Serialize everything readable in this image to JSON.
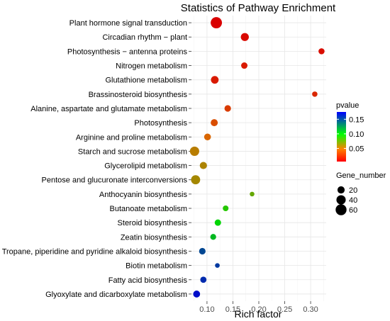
{
  "chart_data": {
    "type": "scatter",
    "title": "Statistics of Pathway Enrichment",
    "xlabel": "Rich factor",
    "ylabel": "",
    "xlim": [
      0.07,
      0.33
    ],
    "x_ticks": [
      "0.10",
      "0.15",
      "0.20",
      "0.25",
      "0.30"
    ],
    "x_tick_values": [
      0.1,
      0.15,
      0.2,
      0.25,
      0.3
    ],
    "grid": true,
    "points": [
      {
        "pathway": "Plant hormone signal transduction",
        "rich_factor": 0.118,
        "pvalue": 0.005,
        "gene_number": 65
      },
      {
        "pathway": "Circadian rhythm − plant",
        "rich_factor": 0.173,
        "pvalue": 0.008,
        "gene_number": 27
      },
      {
        "pathway": "Photosynthesis − antenna proteins",
        "rich_factor": 0.321,
        "pvalue": 0.01,
        "gene_number": 12
      },
      {
        "pathway": "Nitrogen metabolism",
        "rich_factor": 0.172,
        "pvalue": 0.015,
        "gene_number": 14
      },
      {
        "pathway": "Glutathione metabolism",
        "rich_factor": 0.115,
        "pvalue": 0.015,
        "gene_number": 24
      },
      {
        "pathway": "Brassinosteroid biosynthesis",
        "rich_factor": 0.308,
        "pvalue": 0.02,
        "gene_number": 8
      },
      {
        "pathway": "Alanine, aspartate and glutamate metabolism",
        "rich_factor": 0.14,
        "pvalue": 0.028,
        "gene_number": 15
      },
      {
        "pathway": "Photosynthesis",
        "rich_factor": 0.114,
        "pvalue": 0.035,
        "gene_number": 19
      },
      {
        "pathway": "Arginine and proline metabolism",
        "rich_factor": 0.101,
        "pvalue": 0.045,
        "gene_number": 17
      },
      {
        "pathway": "Starch and sucrose metabolism",
        "rich_factor": 0.076,
        "pvalue": 0.055,
        "gene_number": 40
      },
      {
        "pathway": "Glycerolipid metabolism",
        "rich_factor": 0.093,
        "pvalue": 0.058,
        "gene_number": 20
      },
      {
        "pathway": "Pentose and glucuronate interconversions",
        "rich_factor": 0.078,
        "pvalue": 0.06,
        "gene_number": 38
      },
      {
        "pathway": "Anthocyanin biosynthesis",
        "rich_factor": 0.187,
        "pvalue": 0.075,
        "gene_number": 5
      },
      {
        "pathway": "Butanoate metabolism",
        "rich_factor": 0.136,
        "pvalue": 0.09,
        "gene_number": 10
      },
      {
        "pathway": "Steroid biosynthesis",
        "rich_factor": 0.121,
        "pvalue": 0.1,
        "gene_number": 14
      },
      {
        "pathway": "Zeatin biosynthesis",
        "rich_factor": 0.112,
        "pvalue": 0.11,
        "gene_number": 11
      },
      {
        "pathway": "Tropane, piperidine and pyridine alkaloid biosynthesis",
        "rich_factor": 0.091,
        "pvalue": 0.15,
        "gene_number": 15
      },
      {
        "pathway": "Biotin metabolism",
        "rich_factor": 0.12,
        "pvalue": 0.155,
        "gene_number": 5
      },
      {
        "pathway": "Fatty acid biosynthesis",
        "rich_factor": 0.093,
        "pvalue": 0.16,
        "gene_number": 13
      },
      {
        "pathway": "Glyoxylate and dicarboxylate metabolism",
        "rich_factor": 0.08,
        "pvalue": 0.17,
        "gene_number": 18
      }
    ],
    "color_legend": {
      "title": "pvalue",
      "ticks": [
        "0.15",
        "0.10",
        "0.05"
      ],
      "tick_values": [
        0.15,
        0.1,
        0.05
      ],
      "range": [
        0.005,
        0.175
      ],
      "gradient": [
        "#ff0000",
        "#ff8000",
        "#00ff00",
        "#0000ff"
      ]
    },
    "size_legend": {
      "title": "Gene_number",
      "labels": [
        "20",
        "40",
        "60"
      ],
      "values": [
        20,
        40,
        60
      ]
    }
  }
}
